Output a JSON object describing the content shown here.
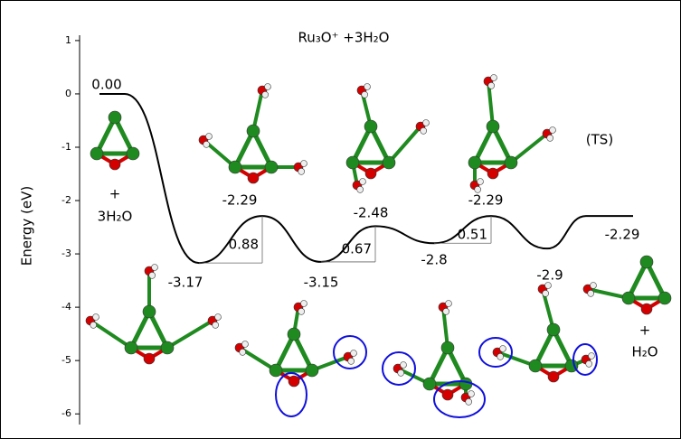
{
  "chart_data": {
    "type": "line",
    "title": "Ru₃O⁺ +3H₂O",
    "y_label": "Energy (eV)",
    "values": [
      0.0,
      -3.17,
      -2.29,
      -3.15,
      -2.48,
      -2.8,
      -2.29,
      -2.9,
      -2.29
    ],
    "value_labels": [
      "0.00",
      "-3.17",
      "-2.29",
      "-3.15",
      "-2.48",
      "-2.8",
      "-2.29",
      "-2.9",
      "-2.29"
    ],
    "barriers": [
      0.88,
      0.67,
      0.51
    ],
    "color": "#000000",
    "ylim": [
      -6.2,
      1.1
    ],
    "yticks": [
      -6,
      -5,
      -4,
      -3,
      -2,
      -1,
      0,
      1
    ],
    "annotations": {
      "reactant_plus": "+",
      "reactant_water": "3H₂O",
      "ts": "(TS)",
      "product_plus": "+",
      "product_water": "H₂O"
    }
  }
}
